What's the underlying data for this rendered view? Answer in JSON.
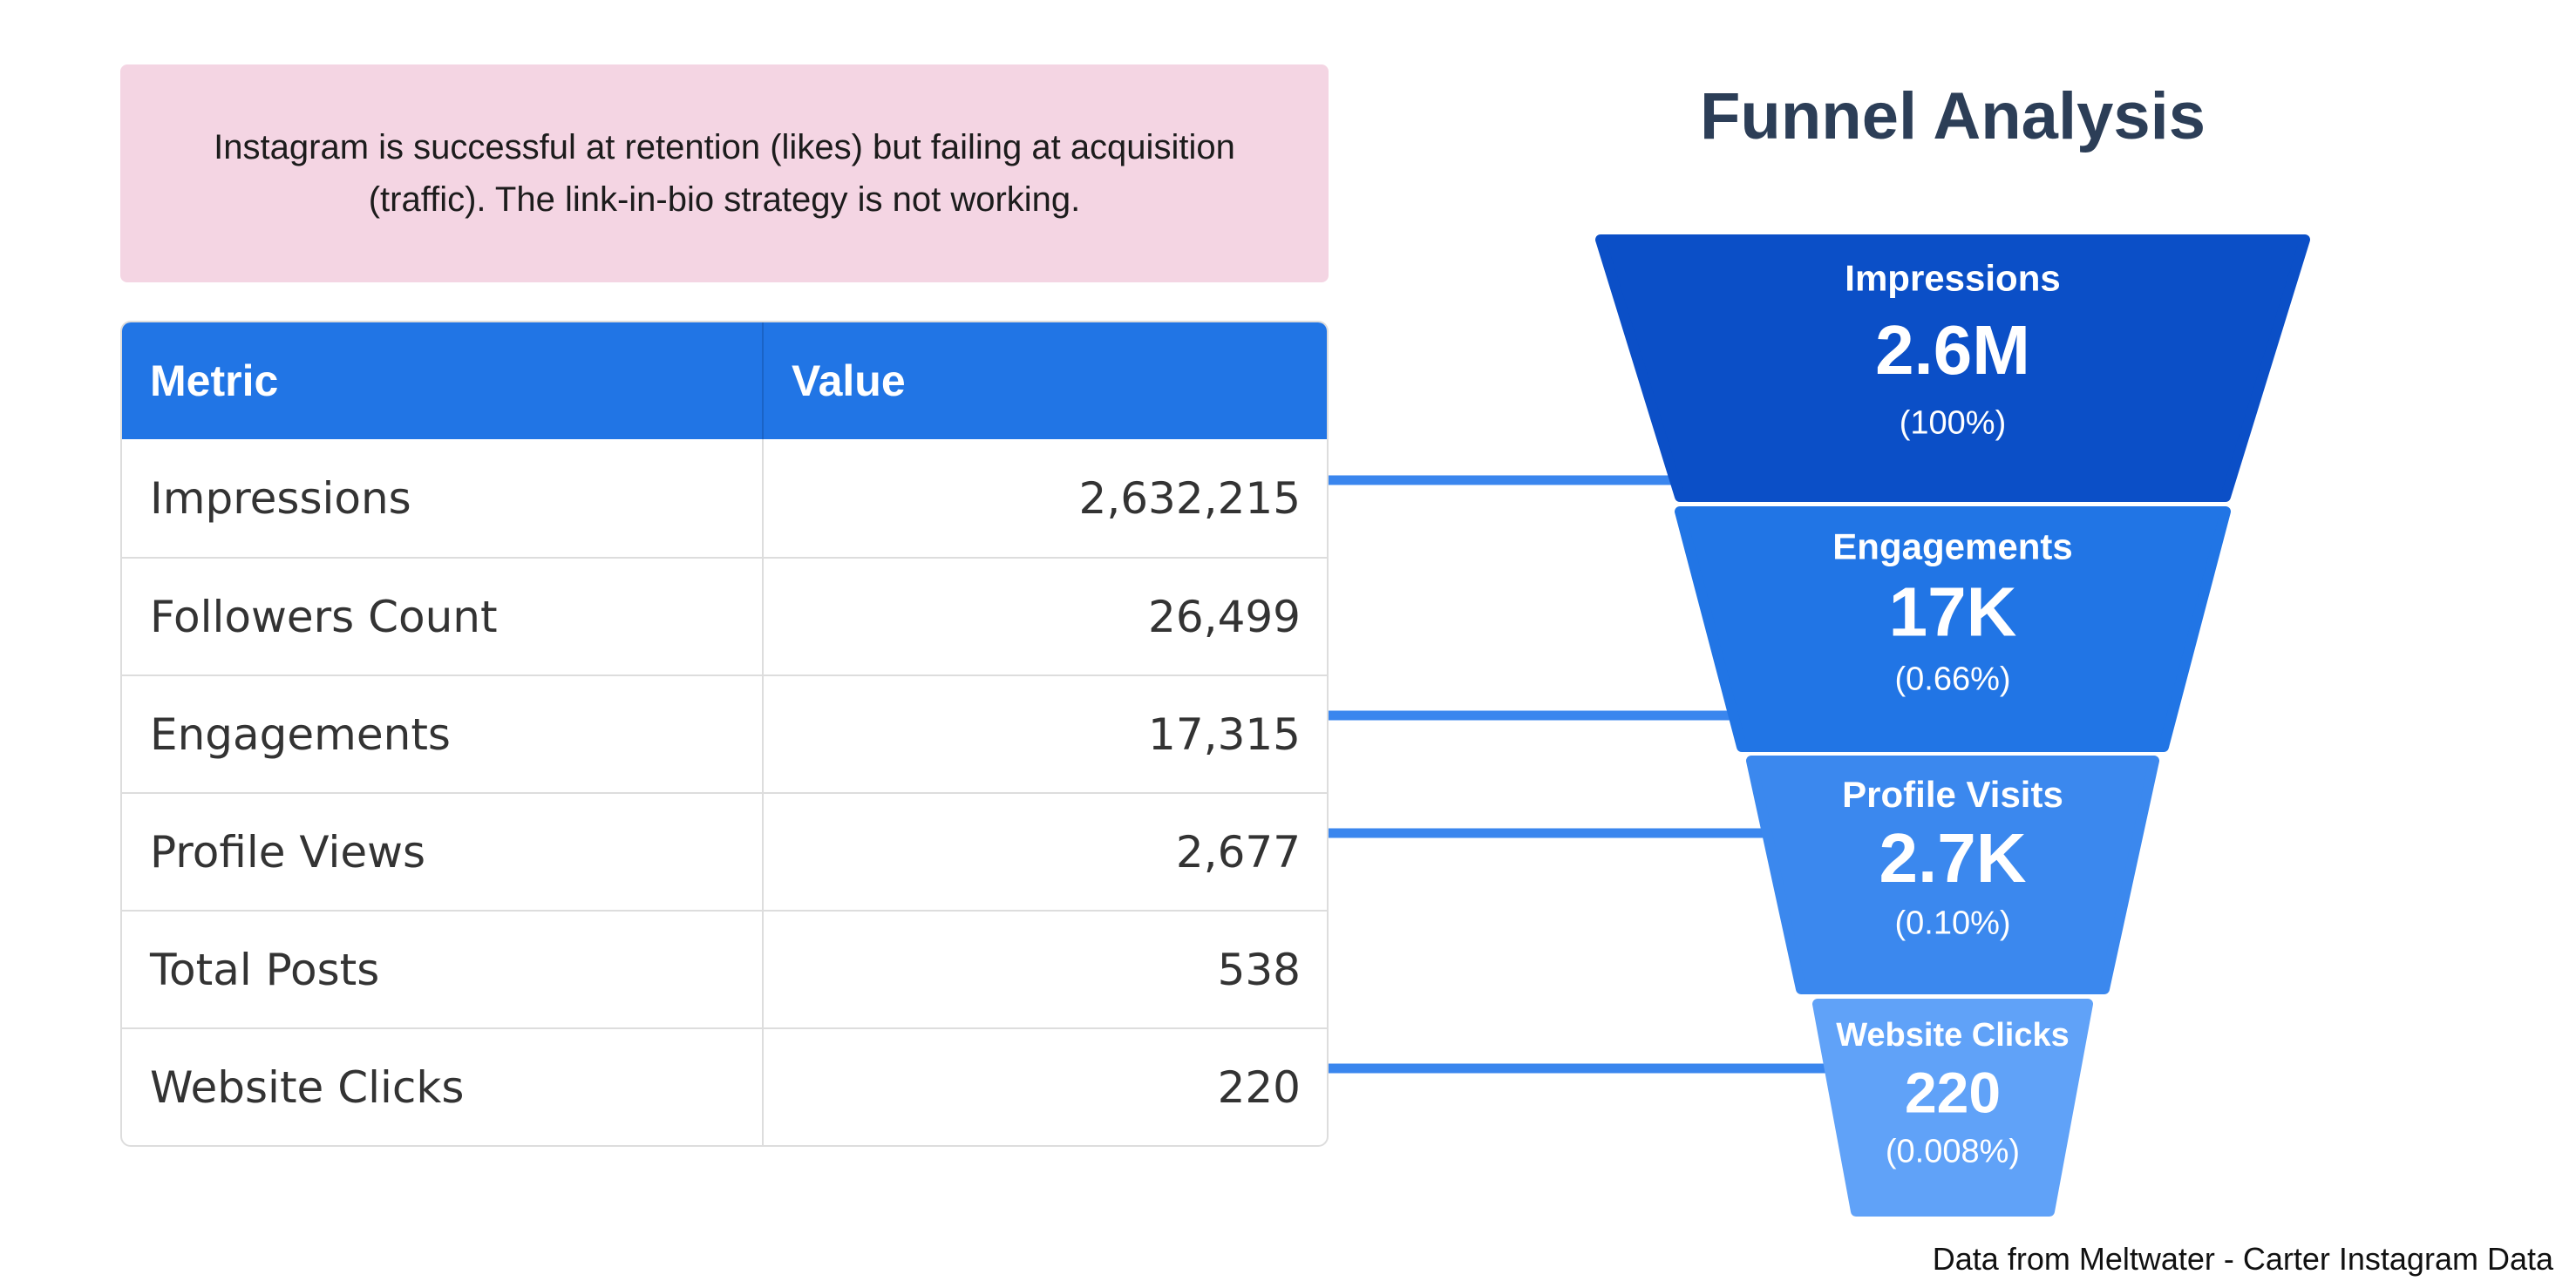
{
  "insight_text": "Instagram is successful at retention (likes) but failing at acquisition (traffic). The link-in-bio strategy is not working.",
  "table": {
    "headers": [
      "Metric",
      "Value"
    ],
    "rows": [
      {
        "metric": "Impressions",
        "value": "2,632,215"
      },
      {
        "metric": "Followers Count",
        "value": "26,499"
      },
      {
        "metric": "Engagements",
        "value": "17,315"
      },
      {
        "metric": "Profile Views",
        "value": "2,677"
      },
      {
        "metric": "Total Posts",
        "value": "538"
      },
      {
        "metric": "Website Clicks",
        "value": "220"
      }
    ]
  },
  "chart_data": {
    "type": "funnel",
    "title": "Funnel Analysis",
    "stages": [
      {
        "label": "Impressions",
        "value": 2632215,
        "display_value": "2.6M",
        "percent_label": "(100%)",
        "color": "#0b4fc7",
        "table_row": 0
      },
      {
        "label": "Engagements",
        "value": 17315,
        "display_value": "17K",
        "percent_label": "(0.66%)",
        "color": "#2175e5",
        "table_row": 2
      },
      {
        "label": "Profile Visits",
        "value": 2677,
        "display_value": "2.7K",
        "percent_label": "(0.10%)",
        "color": "#3b88ee",
        "table_row": 3
      },
      {
        "label": "Website Clicks",
        "value": 220,
        "display_value": "220",
        "percent_label": "(0.008%)",
        "color": "#60a2f8",
        "table_row": 5
      }
    ]
  },
  "colors": {
    "header_bg": "#2175e5",
    "insight_bg": "#f4d5e3",
    "connector": "#3a86ee",
    "title": "#2c3e57"
  },
  "source_text": "Data from Meltwater - Carter Instagram Data"
}
